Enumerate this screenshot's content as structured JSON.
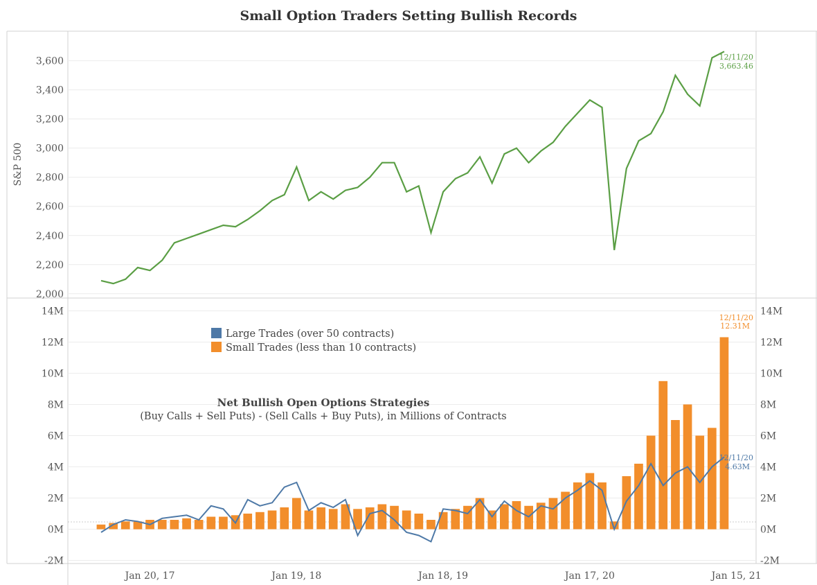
{
  "title": "Small Option Traders Setting Bullish Records",
  "colors": {
    "sp500": "#5a9e44",
    "large": "#4e79a7",
    "small": "#f28e2b",
    "grid": "#ececec",
    "axis": "#d0d0d0"
  },
  "x_ticks": [
    "Jan 20, 17",
    "Jan 19, 18",
    "Jan 18, 19",
    "Jan 17, 20",
    "Jan 15, 21"
  ],
  "top": {
    "ylabel": "S&P 500",
    "y_ticks": [
      "2,000",
      "2,200",
      "2,400",
      "2,600",
      "2,800",
      "3,000",
      "3,200",
      "3,400",
      "3,600"
    ],
    "annotation": {
      "date": "12/11/20",
      "value": "3,663.46"
    }
  },
  "bottom": {
    "title": "Net Bullish Open Options Strategies",
    "subtitle": "(Buy Calls + Sell Puts) - (Sell Calls + Buy Puts), in Millions of Contracts",
    "y_ticks": [
      "-2M",
      "0M",
      "2M",
      "4M",
      "6M",
      "8M",
      "10M",
      "12M",
      "14M"
    ],
    "legend": [
      {
        "label": "Large Trades (over 50 contracts)",
        "color": "#4e79a7"
      },
      {
        "label": "Small Trades (less than 10 contracts)",
        "color": "#f28e2b"
      }
    ],
    "small_annotation": {
      "date": "12/11/20",
      "value": "12.31M"
    },
    "large_annotation": {
      "date": "12/11/20",
      "value": "4.63M"
    }
  },
  "chart_data": [
    {
      "type": "line",
      "ylabel": "S&P 500",
      "ylim": [
        1980,
        3760
      ],
      "x": [
        "2016-09",
        "2016-10",
        "2016-11",
        "2016-12",
        "2017-01",
        "2017-02",
        "2017-03",
        "2017-04",
        "2017-05",
        "2017-06",
        "2017-07",
        "2017-08",
        "2017-09",
        "2017-10",
        "2017-11",
        "2017-12",
        "2018-01",
        "2018-02",
        "2018-03",
        "2018-04",
        "2018-05",
        "2018-06",
        "2018-07",
        "2018-08",
        "2018-09",
        "2018-10",
        "2018-11",
        "2018-12",
        "2019-01",
        "2019-02",
        "2019-03",
        "2019-04",
        "2019-05",
        "2019-06",
        "2019-07",
        "2019-08",
        "2019-09",
        "2019-10",
        "2019-11",
        "2019-12",
        "2020-01",
        "2020-02",
        "2020-03",
        "2020-04",
        "2020-05",
        "2020-06",
        "2020-07",
        "2020-08",
        "2020-09",
        "2020-10",
        "2020-11",
        "2020-12"
      ],
      "series": [
        {
          "values": [
            2090,
            2070,
            2100,
            2180,
            2160,
            2230,
            2350,
            2380,
            2410,
            2440,
            2470,
            2460,
            2510,
            2570,
            2640,
            2680,
            2870,
            2640,
            2700,
            2650,
            2710,
            2730,
            2800,
            2900,
            2900,
            2700,
            2740,
            2420,
            2700,
            2790,
            2830,
            2940,
            2760,
            2960,
            3000,
            2900,
            2980,
            3040,
            3150,
            3240,
            3330,
            3280,
            2300,
            2860,
            3050,
            3100,
            3250,
            3500,
            3370,
            3290,
            3620,
            3663.46
          ]
        }
      ]
    },
    {
      "type": "bar",
      "ylim": [
        -2.2,
        14.2
      ],
      "x": [
        "2016-09",
        "2016-10",
        "2016-11",
        "2016-12",
        "2017-01",
        "2017-02",
        "2017-03",
        "2017-04",
        "2017-05",
        "2017-06",
        "2017-07",
        "2017-08",
        "2017-09",
        "2017-10",
        "2017-11",
        "2017-12",
        "2018-01",
        "2018-02",
        "2018-03",
        "2018-04",
        "2018-05",
        "2018-06",
        "2018-07",
        "2018-08",
        "2018-09",
        "2018-10",
        "2018-11",
        "2018-12",
        "2019-01",
        "2019-02",
        "2019-03",
        "2019-04",
        "2019-05",
        "2019-06",
        "2019-07",
        "2019-08",
        "2019-09",
        "2019-10",
        "2019-11",
        "2019-12",
        "2020-01",
        "2020-02",
        "2020-03",
        "2020-04",
        "2020-05",
        "2020-06",
        "2020-07",
        "2020-08",
        "2020-09",
        "2020-10",
        "2020-11",
        "2020-12"
      ],
      "series": [
        {
          "name": "Small Trades (less than 10 contracts)",
          "values": [
            0.3,
            0.4,
            0.5,
            0.5,
            0.6,
            0.6,
            0.6,
            0.7,
            0.6,
            0.8,
            0.8,
            0.9,
            1.0,
            1.1,
            1.2,
            1.4,
            2.0,
            1.2,
            1.4,
            1.3,
            1.6,
            1.3,
            1.4,
            1.6,
            1.5,
            1.2,
            1.0,
            0.6,
            1.1,
            1.3,
            1.5,
            2.0,
            1.2,
            1.6,
            1.8,
            1.5,
            1.7,
            2.0,
            2.4,
            3.0,
            3.6,
            3.0,
            0.5,
            3.4,
            4.2,
            6.0,
            9.5,
            7.0,
            8.0,
            6.0,
            6.5,
            12.31
          ]
        },
        {
          "name": "Large Trades (over 50 contracts)",
          "values": [
            -0.2,
            0.3,
            0.6,
            0.5,
            0.3,
            0.7,
            0.8,
            0.9,
            0.6,
            1.5,
            1.3,
            0.4,
            1.9,
            1.5,
            1.7,
            2.7,
            3.0,
            1.2,
            1.7,
            1.4,
            1.9,
            -0.4,
            1.0,
            1.2,
            0.6,
            -0.2,
            -0.4,
            -0.8,
            1.3,
            1.2,
            1.0,
            1.9,
            0.8,
            1.8,
            1.2,
            0.8,
            1.5,
            1.3,
            2.0,
            2.5,
            3.1,
            2.5,
            0.0,
            1.8,
            2.8,
            4.2,
            2.8,
            3.6,
            4.0,
            3.0,
            4.0,
            4.63
          ]
        }
      ]
    }
  ]
}
